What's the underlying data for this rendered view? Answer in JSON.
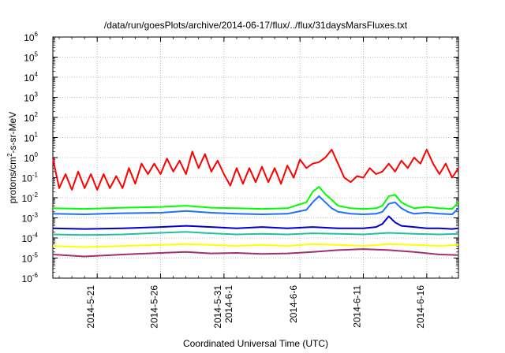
{
  "chart_data": {
    "type": "line",
    "title": "/data/run/goesPlots/archive/2014-06-17/flux/../flux/31daysMarsFluxes.txt",
    "xlabel": "Coordinated Universal Time (UTC)",
    "ylabel": {
      "base": "protons/cm",
      "sup": "2",
      "rest": "-s-sr-MeV"
    },
    "yscale": "log",
    "ylim_exponent": [
      -6,
      6
    ],
    "xlim": [
      "2014-05-17T12:00",
      "2014-06-18T12:00"
    ],
    "grid": true,
    "legend": "none",
    "y_ticks": [
      {
        "exp": -6,
        "base": "10",
        "sup": "-6"
      },
      {
        "exp": -5,
        "base": "10",
        "sup": "-5"
      },
      {
        "exp": -4,
        "base": "10",
        "sup": "-4"
      },
      {
        "exp": -3,
        "base": "10",
        "sup": "-3"
      },
      {
        "exp": -2,
        "base": "10",
        "sup": "-2"
      },
      {
        "exp": -1,
        "base": "10",
        "sup": "-1"
      },
      {
        "exp": 0,
        "base": "10",
        "sup": "0"
      },
      {
        "exp": 1,
        "base": "10",
        "sup": "1"
      },
      {
        "exp": 2,
        "base": "10",
        "sup": "2"
      },
      {
        "exp": 3,
        "base": "10",
        "sup": "3"
      },
      {
        "exp": 4,
        "base": "10",
        "sup": "4"
      },
      {
        "exp": 5,
        "base": "10",
        "sup": "5"
      },
      {
        "exp": 6,
        "base": "10",
        "sup": "6"
      }
    ],
    "x_ticks": [
      {
        "date": "2014-05-21",
        "lines": [
          "2014-5-21"
        ]
      },
      {
        "date": "2014-05-26",
        "lines": [
          "2014-5-26"
        ]
      },
      {
        "date": "2014-05-31",
        "lines": [
          "2014-5-31",
          "2014-6-1"
        ]
      },
      {
        "date": "2014-06-06",
        "lines": [
          "2014-6-6"
        ]
      },
      {
        "date": "2014-06-11",
        "lines": [
          "2014-6-11"
        ]
      },
      {
        "date": "2014-06-16",
        "lines": [
          "2014-6-16"
        ]
      }
    ],
    "series": [
      {
        "color": "#ff0000",
        "dates": [
          "2014-05-17T12:00",
          "2014-05-18T00:00",
          "2014-05-18T12:00",
          "2014-05-19T00:00",
          "2014-05-19T12:00",
          "2014-05-20T00:00",
          "2014-05-20T12:00",
          "2014-05-21T00:00",
          "2014-05-21T12:00",
          "2014-05-22T00:00",
          "2014-05-22T12:00",
          "2014-05-23T00:00",
          "2014-05-23T12:00",
          "2014-05-24T00:00",
          "2014-05-24T12:00",
          "2014-05-25T00:00",
          "2014-05-25T12:00",
          "2014-05-26T00:00",
          "2014-05-26T12:00",
          "2014-05-27T00:00",
          "2014-05-27T12:00",
          "2014-05-28T00:00",
          "2014-05-28T12:00",
          "2014-05-29T00:00",
          "2014-05-29T12:00",
          "2014-05-30T00:00",
          "2014-05-30T12:00",
          "2014-05-31T00:00",
          "2014-05-31T12:00",
          "2014-06-01T00:00",
          "2014-06-01T12:00",
          "2014-06-02T00:00",
          "2014-06-02T12:00",
          "2014-06-03T00:00",
          "2014-06-03T12:00",
          "2014-06-04T00:00",
          "2014-06-04T12:00",
          "2014-06-05T00:00",
          "2014-06-05T12:00",
          "2014-06-06T00:00",
          "2014-06-06T12:00",
          "2014-06-07T00:00",
          "2014-06-07T12:00",
          "2014-06-08T00:00",
          "2014-06-08T12:00",
          "2014-06-09T00:00",
          "2014-06-09T12:00",
          "2014-06-10T00:00",
          "2014-06-10T12:00",
          "2014-06-11T00:00",
          "2014-06-11T12:00",
          "2014-06-12T00:00",
          "2014-06-12T12:00",
          "2014-06-13T00:00",
          "2014-06-13T12:00",
          "2014-06-14T00:00",
          "2014-06-14T12:00",
          "2014-06-15T00:00",
          "2014-06-15T12:00",
          "2014-06-16T00:00",
          "2014-06-16T12:00",
          "2014-06-17T00:00",
          "2014-06-17T12:00",
          "2014-06-18T00:00",
          "2014-06-18T12:00"
        ],
        "values": [
          0.9,
          0.03,
          0.15,
          0.025,
          0.2,
          0.03,
          0.15,
          0.025,
          0.15,
          0.03,
          0.12,
          0.03,
          0.3,
          0.05,
          0.5,
          0.15,
          0.5,
          0.15,
          0.9,
          0.2,
          0.7,
          0.15,
          2.0,
          0.3,
          1.5,
          0.2,
          0.7,
          0.15,
          0.04,
          0.3,
          0.05,
          0.3,
          0.06,
          0.35,
          0.06,
          0.3,
          0.05,
          0.4,
          0.1,
          0.8,
          0.3,
          0.5,
          0.6,
          1.0,
          2.5,
          0.5,
          0.1,
          0.06,
          0.12,
          0.1,
          0.3,
          0.15,
          0.2,
          0.5,
          0.2,
          0.7,
          0.3,
          1.0,
          0.5,
          2.5,
          0.5,
          0.15,
          0.5,
          0.1,
          0.3
        ]
      },
      {
        "color": "#00ff00",
        "dates": [
          "2014-05-17T12:00",
          "2014-05-20T00:00",
          "2014-05-23T00:00",
          "2014-05-26T00:00",
          "2014-05-28T00:00",
          "2014-05-30T00:00",
          "2014-06-01T00:00",
          "2014-06-03T00:00",
          "2014-06-05T00:00",
          "2014-06-06T12:00",
          "2014-06-07T00:00",
          "2014-06-07T12:00",
          "2014-06-08T00:00",
          "2014-06-08T12:00",
          "2014-06-09T00:00",
          "2014-06-10T00:00",
          "2014-06-11T00:00",
          "2014-06-12T00:00",
          "2014-06-12T12:00",
          "2014-06-13T00:00",
          "2014-06-13T12:00",
          "2014-06-14T00:00",
          "2014-06-14T12:00",
          "2014-06-15T00:00",
          "2014-06-16T00:00",
          "2014-06-17T00:00",
          "2014-06-18T00:00",
          "2014-06-18T12:00"
        ],
        "values": [
          0.003,
          0.0028,
          0.0032,
          0.0035,
          0.004,
          0.0032,
          0.003,
          0.0028,
          0.003,
          0.006,
          0.02,
          0.035,
          0.015,
          0.008,
          0.004,
          0.003,
          0.0028,
          0.003,
          0.004,
          0.012,
          0.014,
          0.006,
          0.004,
          0.003,
          0.0035,
          0.003,
          0.0028,
          0.006
        ]
      },
      {
        "color": "#1f6fff",
        "dates": [
          "2014-05-17T12:00",
          "2014-05-20T00:00",
          "2014-05-23T00:00",
          "2014-05-26T00:00",
          "2014-05-28T00:00",
          "2014-05-30T00:00",
          "2014-06-01T00:00",
          "2014-06-03T00:00",
          "2014-06-05T00:00",
          "2014-06-06T12:00",
          "2014-06-07T00:00",
          "2014-06-07T12:00",
          "2014-06-08T00:00",
          "2014-06-08T12:00",
          "2014-06-09T00:00",
          "2014-06-10T00:00",
          "2014-06-11T00:00",
          "2014-06-12T00:00",
          "2014-06-12T12:00",
          "2014-06-13T00:00",
          "2014-06-13T12:00",
          "2014-06-14T00:00",
          "2014-06-14T12:00",
          "2014-06-15T00:00",
          "2014-06-16T00:00",
          "2014-06-17T00:00",
          "2014-06-18T00:00",
          "2014-06-18T12:00"
        ],
        "values": [
          0.0016,
          0.0015,
          0.0017,
          0.0018,
          0.0022,
          0.0018,
          0.0016,
          0.0015,
          0.0016,
          0.0025,
          0.006,
          0.012,
          0.006,
          0.003,
          0.002,
          0.0016,
          0.0015,
          0.0016,
          0.002,
          0.005,
          0.006,
          0.003,
          0.002,
          0.0016,
          0.0018,
          0.0016,
          0.0015,
          0.003
        ]
      },
      {
        "color": "#0000cc",
        "dates": [
          "2014-05-17T12:00",
          "2014-05-20T00:00",
          "2014-05-23T00:00",
          "2014-05-26T00:00",
          "2014-05-28T00:00",
          "2014-05-30T00:00",
          "2014-06-01T00:00",
          "2014-06-03T00:00",
          "2014-06-05T00:00",
          "2014-06-07T00:00",
          "2014-06-09T00:00",
          "2014-06-11T00:00",
          "2014-06-12T00:00",
          "2014-06-12T12:00",
          "2014-06-13T00:00",
          "2014-06-13T12:00",
          "2014-06-14T00:00",
          "2014-06-15T00:00",
          "2014-06-16T00:00",
          "2014-06-17T00:00",
          "2014-06-18T00:00",
          "2014-06-18T12:00"
        ],
        "values": [
          0.0003,
          0.00028,
          0.0003,
          0.00035,
          0.0004,
          0.00035,
          0.0003,
          0.00035,
          0.0003,
          0.00035,
          0.0003,
          0.0003,
          0.00035,
          0.0005,
          0.0012,
          0.0006,
          0.0004,
          0.00035,
          0.0003,
          0.0003,
          0.00028,
          0.0003
        ]
      },
      {
        "color": "#20c0a0",
        "dates": [
          "2014-05-17T12:00",
          "2014-05-20T00:00",
          "2014-05-23T00:00",
          "2014-05-26T00:00",
          "2014-05-28T00:00",
          "2014-05-30T00:00",
          "2014-06-01T00:00",
          "2014-06-03T00:00",
          "2014-06-05T00:00",
          "2014-06-07T00:00",
          "2014-06-09T00:00",
          "2014-06-11T00:00",
          "2014-06-13T00:00",
          "2014-06-15T00:00",
          "2014-06-17T00:00",
          "2014-06-18T12:00"
        ],
        "values": [
          0.00015,
          0.00014,
          0.00015,
          0.00018,
          0.0002,
          0.00017,
          0.00015,
          0.00016,
          0.00015,
          0.00017,
          0.00016,
          0.00015,
          0.00018,
          0.00016,
          0.00015,
          0.00016
        ]
      },
      {
        "color": "#ffff00",
        "dates": [
          "2014-05-17T12:00",
          "2014-05-20T00:00",
          "2014-05-23T00:00",
          "2014-05-26T00:00",
          "2014-05-28T00:00",
          "2014-05-30T00:00",
          "2014-06-01T00:00",
          "2014-06-03T00:00",
          "2014-06-05T00:00",
          "2014-06-07T00:00",
          "2014-06-09T00:00",
          "2014-06-11T00:00",
          "2014-06-13T00:00",
          "2014-06-15T00:00",
          "2014-06-17T00:00",
          "2014-06-18T12:00"
        ],
        "values": [
          4e-05,
          3.5e-05,
          4e-05,
          4.5e-05,
          5e-05,
          4.5e-05,
          4e-05,
          4.5e-05,
          4e-05,
          5e-05,
          4.5e-05,
          4e-05,
          5e-05,
          4.5e-05,
          4e-05,
          4.5e-05
        ]
      },
      {
        "color": "#a03070",
        "dates": [
          "2014-05-17T12:00",
          "2014-05-20T00:00",
          "2014-05-23T00:00",
          "2014-05-26T00:00",
          "2014-05-28T00:00",
          "2014-05-30T00:00",
          "2014-06-01T00:00",
          "2014-06-03T00:00",
          "2014-06-05T00:00",
          "2014-06-07T00:00",
          "2014-06-09T00:00",
          "2014-06-11T00:00",
          "2014-06-13T00:00",
          "2014-06-15T00:00",
          "2014-06-17T00:00",
          "2014-06-18T12:00"
        ],
        "values": [
          1.5e-05,
          1.2e-05,
          1.5e-05,
          1.8e-05,
          2e-05,
          1.7e-05,
          1.8e-05,
          1.6e-05,
          1.7e-05,
          2e-05,
          2.5e-05,
          2.8e-05,
          2.5e-05,
          2e-05,
          1.5e-05,
          1.4e-05
        ]
      }
    ]
  }
}
